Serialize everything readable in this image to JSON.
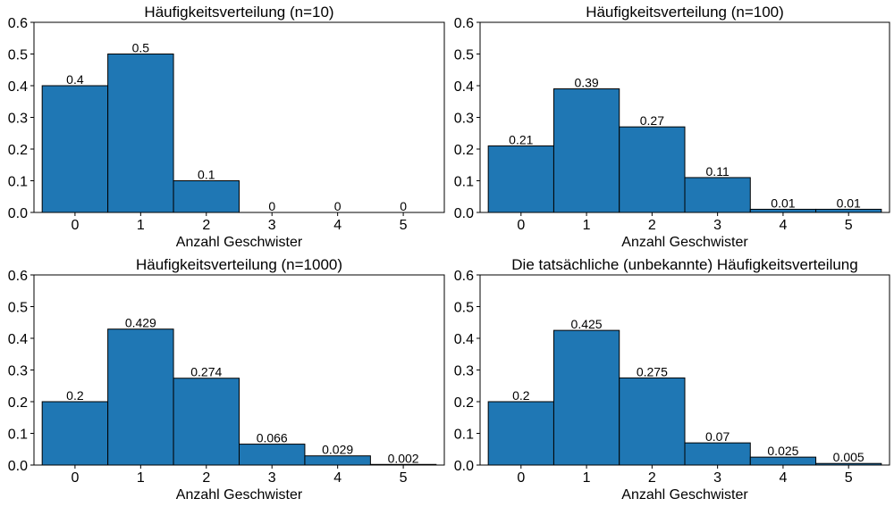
{
  "chart_data": [
    {
      "type": "bar",
      "title": "Häufigkeitsverteilung (n=10)",
      "xlabel": "Anzahl Geschwister",
      "ylabel": "",
      "categories": [
        "0",
        "1",
        "2",
        "3",
        "4",
        "5"
      ],
      "values": [
        0.4,
        0.5,
        0.1,
        0,
        0,
        0
      ],
      "value_labels": [
        "0.4",
        "0.5",
        "0.1",
        "0",
        "0",
        "0"
      ],
      "ylim": [
        0,
        0.6
      ],
      "yticks": [
        "0.0",
        "0.1",
        "0.2",
        "0.3",
        "0.4",
        "0.5",
        "0.6"
      ],
      "grid": false
    },
    {
      "type": "bar",
      "title": "Häufigkeitsverteilung (n=100)",
      "xlabel": "Anzahl Geschwister",
      "ylabel": "",
      "categories": [
        "0",
        "1",
        "2",
        "3",
        "4",
        "5"
      ],
      "values": [
        0.21,
        0.39,
        0.27,
        0.11,
        0.01,
        0.01
      ],
      "value_labels": [
        "0.21",
        "0.39",
        "0.27",
        "0.11",
        "0.01",
        "0.01"
      ],
      "ylim": [
        0,
        0.6
      ],
      "yticks": [
        "0.0",
        "0.1",
        "0.2",
        "0.3",
        "0.4",
        "0.5",
        "0.6"
      ],
      "grid": false
    },
    {
      "type": "bar",
      "title": "Häufigkeitsverteilung (n=1000)",
      "xlabel": "Anzahl Geschwister",
      "ylabel": "",
      "categories": [
        "0",
        "1",
        "2",
        "3",
        "4",
        "5"
      ],
      "values": [
        0.2,
        0.429,
        0.274,
        0.066,
        0.029,
        0.002
      ],
      "value_labels": [
        "0.2",
        "0.429",
        "0.274",
        "0.066",
        "0.029",
        "0.002"
      ],
      "ylim": [
        0,
        0.6
      ],
      "yticks": [
        "0.0",
        "0.1",
        "0.2",
        "0.3",
        "0.4",
        "0.5",
        "0.6"
      ],
      "grid": false
    },
    {
      "type": "bar",
      "title": "Die tatsächliche (unbekannte) Häufigkeitsverteilung",
      "xlabel": "Anzahl Geschwister",
      "ylabel": "",
      "categories": [
        "0",
        "1",
        "2",
        "3",
        "4",
        "5"
      ],
      "values": [
        0.2,
        0.425,
        0.275,
        0.07,
        0.025,
        0.005
      ],
      "value_labels": [
        "0.2",
        "0.425",
        "0.275",
        "0.07",
        "0.025",
        "0.005"
      ],
      "ylim": [
        0,
        0.6
      ],
      "yticks": [
        "0.0",
        "0.1",
        "0.2",
        "0.3",
        "0.4",
        "0.5",
        "0.6"
      ],
      "grid": false
    }
  ],
  "colors": {
    "bar_fill": "#1f77b4",
    "bar_edge": "#000000",
    "axis": "#000000"
  }
}
